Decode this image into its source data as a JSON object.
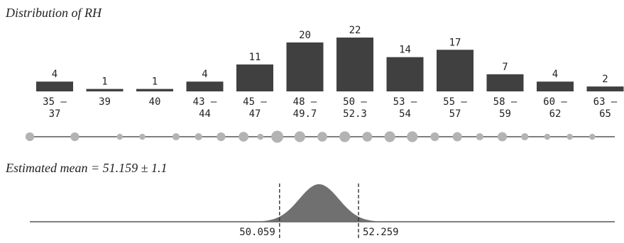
{
  "chart_data": [
    {
      "type": "bar",
      "title": "Distribution of RH",
      "categories": [
        "35 –\n37",
        "39",
        "40",
        "43 –\n44",
        "45 –\n47",
        "48 –\n49.7",
        "50 –\n52.3",
        "53 –\n54",
        "55 –\n57",
        "58 –\n59",
        "60 –\n62",
        "63 –\n65"
      ],
      "values": [
        4,
        1,
        1,
        4,
        11,
        20,
        22,
        14,
        17,
        7,
        4,
        2
      ],
      "data_labels": [
        "4",
        "1",
        "1",
        "4",
        "11",
        "20",
        "22",
        "14",
        "17",
        "7",
        "4",
        "2"
      ],
      "ylim": [
        0,
        22
      ],
      "grid": false,
      "colors": {
        "bar": "#404040",
        "text": "#222222"
      }
    },
    {
      "type": "scatter",
      "points": [
        {
          "x": 35,
          "size": 4
        },
        {
          "x": 39,
          "size": 4
        },
        {
          "x": 43,
          "size": 1
        },
        {
          "x": 45,
          "size": 1
        },
        {
          "x": 48,
          "size": 2
        },
        {
          "x": 50,
          "size": 2
        },
        {
          "x": 52,
          "size": 4
        },
        {
          "x": 54,
          "size": 6
        },
        {
          "x": 55.5,
          "size": 1
        },
        {
          "x": 57,
          "size": 11
        },
        {
          "x": 59,
          "size": 8
        },
        {
          "x": 61,
          "size": 6
        },
        {
          "x": 63,
          "size": 8
        },
        {
          "x": 65,
          "size": 6
        },
        {
          "x": 67,
          "size": 8
        },
        {
          "x": 69,
          "size": 8
        },
        {
          "x": 71,
          "size": 4
        },
        {
          "x": 73,
          "size": 5
        },
        {
          "x": 75,
          "size": 2
        },
        {
          "x": 77,
          "size": 5
        },
        {
          "x": 79,
          "size": 2
        },
        {
          "x": 81,
          "size": 1
        },
        {
          "x": 83,
          "size": 1
        },
        {
          "x": 85,
          "size": 1
        }
      ],
      "xlim": [
        35,
        87
      ],
      "colors": {
        "dot": "#b3b3b3",
        "axis": "#555555"
      }
    },
    {
      "type": "area",
      "title": "Estimated mean = 51.159 ± 1.1",
      "mean": 51.159,
      "error": 1.1,
      "interval": [
        50.059,
        52.259
      ],
      "interval_labels": [
        "50.059",
        "52.259"
      ],
      "xlim": [
        43.1,
        59.4
      ],
      "colors": {
        "fill": "#707070",
        "dashed": "#333333",
        "axis": "#555555"
      }
    }
  ]
}
